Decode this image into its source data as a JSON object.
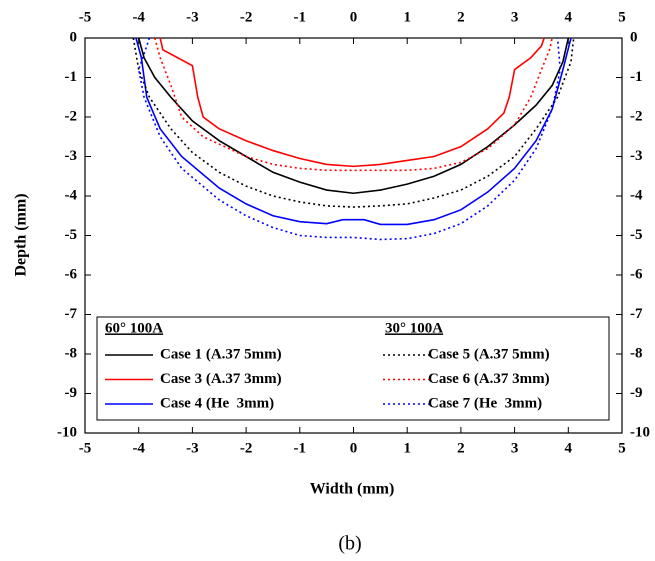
{
  "chart_data": {
    "type": "line",
    "x_label": "Width (mm)",
    "y_label": "Depth (mm)",
    "caption": "(b)",
    "xlim": [
      -5,
      5
    ],
    "xticks": [
      -5,
      -4,
      -3,
      -2,
      -1,
      0,
      1,
      2,
      3,
      4,
      5
    ],
    "ylim": [
      -10,
      0
    ],
    "yticks": [
      -10,
      -9,
      -8,
      -7,
      -6,
      -5,
      -4,
      -3,
      -2,
      -1,
      0
    ],
    "legend_titles": [
      "60° 100A",
      "30° 100A"
    ],
    "series": [
      {
        "name": "Case 1 (A.37 5mm)",
        "color": "#000000",
        "dash": "solid",
        "x": [
          -4.0,
          -3.9,
          -3.7,
          -3.4,
          -3.0,
          -2.5,
          -2,
          -1.5,
          -1,
          -0.5,
          0,
          0.5,
          1,
          1.5,
          2,
          2.5,
          3,
          3.4,
          3.7,
          3.9,
          4.0
        ],
        "values": [
          0,
          -0.5,
          -1,
          -1.5,
          -2.1,
          -2.6,
          -3.0,
          -3.4,
          -3.65,
          -3.85,
          -3.93,
          -3.85,
          -3.7,
          -3.5,
          -3.2,
          -2.75,
          -2.2,
          -1.7,
          -1.2,
          -0.6,
          0
        ]
      },
      {
        "name": "Case 3 (A.37 3mm)",
        "color": "#ff0000",
        "dash": "solid",
        "x": [
          -3.6,
          -3.55,
          -3.0,
          -2.9,
          -2.8,
          -2.5,
          -2,
          -1.5,
          -1,
          -0.5,
          0,
          0.5,
          1,
          1.5,
          2,
          2.5,
          2.8,
          2.9,
          3.0,
          3.3,
          3.5,
          3.55
        ],
        "values": [
          0,
          -0.3,
          -0.7,
          -1.5,
          -2.0,
          -2.3,
          -2.6,
          -2.85,
          -3.05,
          -3.2,
          -3.25,
          -3.2,
          -3.1,
          -3.0,
          -2.75,
          -2.3,
          -1.9,
          -1.5,
          -0.8,
          -0.5,
          -0.2,
          0
        ]
      },
      {
        "name": "Case 4 (He  3mm)",
        "color": "#0000ff",
        "dash": "solid",
        "x": [
          -4.05,
          -3.95,
          -3.85,
          -3.6,
          -3.2,
          -2.5,
          -2,
          -1.5,
          -1,
          -0.5,
          -0.2,
          0.2,
          0.5,
          1,
          1.5,
          2,
          2.5,
          3,
          3.4,
          3.7,
          3.9,
          4.05
        ],
        "values": [
          0,
          -0.5,
          -1.5,
          -2.3,
          -3.0,
          -3.8,
          -4.2,
          -4.5,
          -4.65,
          -4.7,
          -4.6,
          -4.6,
          -4.72,
          -4.72,
          -4.6,
          -4.35,
          -3.9,
          -3.3,
          -2.6,
          -1.8,
          -0.8,
          0
        ]
      },
      {
        "name": "Case 5 (A.37 5mm)",
        "color": "#000000",
        "dash": "dotted",
        "x": [
          -4.1,
          -4.0,
          -3.8,
          -3.4,
          -3,
          -2.5,
          -2,
          -1.5,
          -1,
          -0.5,
          0,
          0.5,
          1,
          1.5,
          2,
          2.5,
          3,
          3.4,
          3.8,
          4.05,
          4.1
        ],
        "values": [
          0,
          -0.8,
          -1.5,
          -2.3,
          -2.9,
          -3.4,
          -3.75,
          -4.0,
          -4.15,
          -4.25,
          -4.28,
          -4.25,
          -4.2,
          -4.05,
          -3.85,
          -3.5,
          -3.0,
          -2.3,
          -1.5,
          -0.6,
          0
        ]
      },
      {
        "name": "Case 6 (A.37 3mm)",
        "color": "#ff0000",
        "dash": "dotted",
        "x": [
          -3.7,
          -3.6,
          -3.4,
          -3.2,
          -2.8,
          -2,
          -1.5,
          -1,
          -0.5,
          0,
          0.5,
          1,
          1.5,
          2,
          2.5,
          3,
          3.3,
          3.5,
          3.65,
          3.7
        ],
        "values": [
          0,
          -0.5,
          -1.2,
          -2.0,
          -2.5,
          -3.0,
          -3.2,
          -3.3,
          -3.35,
          -3.35,
          -3.35,
          -3.35,
          -3.3,
          -3.15,
          -2.8,
          -2.2,
          -1.5,
          -0.8,
          -0.3,
          0
        ]
      },
      {
        "name": "Case 7 (He  3mm)",
        "color": "#0000ff",
        "dash": "dotted",
        "x": [
          -3.8,
          -4.0,
          -3.9,
          -3.6,
          -3.2,
          -2.5,
          -2,
          -1.5,
          -1,
          -0.5,
          0,
          0.5,
          1,
          1.5,
          2,
          2.5,
          3,
          3.4,
          3.7,
          3.85,
          3.8
        ],
        "values": [
          0,
          -0.8,
          -1.5,
          -2.5,
          -3.3,
          -4.1,
          -4.5,
          -4.8,
          -5.0,
          -5.05,
          -5.05,
          -5.1,
          -5.08,
          -4.95,
          -4.7,
          -4.25,
          -3.6,
          -2.8,
          -1.8,
          -0.8,
          0
        ]
      }
    ]
  }
}
